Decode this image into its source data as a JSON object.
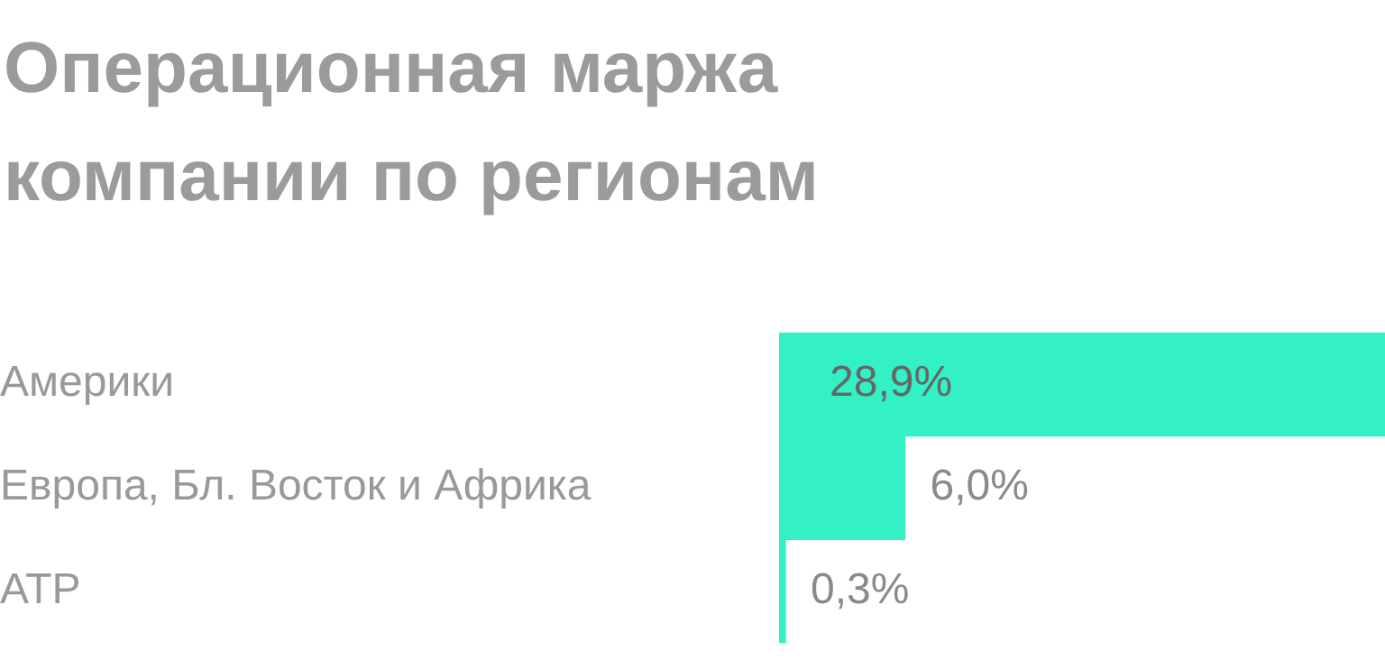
{
  "chart_data": {
    "type": "bar",
    "orientation": "horizontal",
    "title": "Операционная маржа компании по регионам",
    "categories": [
      "Америки",
      "Европа, Бл. Восток и Африка",
      "АТР"
    ],
    "values": [
      28.9,
      6.0,
      0.3
    ],
    "value_labels": [
      "28,9%",
      "6,0%",
      "0,3%"
    ],
    "color": "#33f0c5",
    "grid": false,
    "legend": false
  }
}
